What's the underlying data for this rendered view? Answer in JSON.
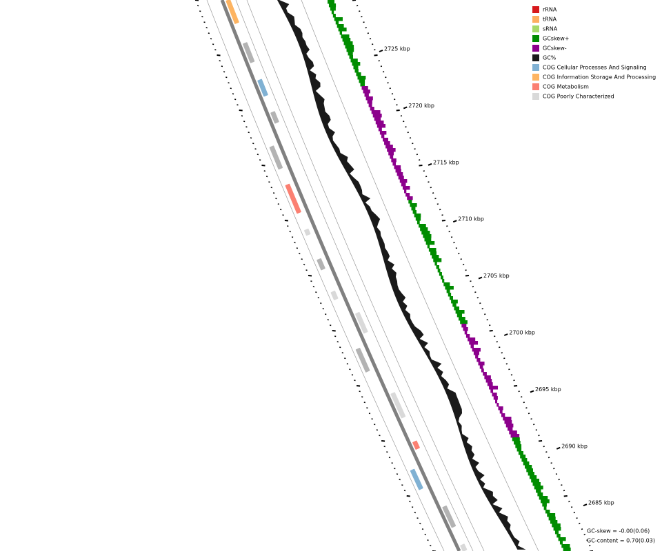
{
  "legend": [
    {
      "label": "rRNA",
      "color": "#d7191c"
    },
    {
      "label": "tRNA",
      "color": "#fdae61"
    },
    {
      "label": "sRNA",
      "color": "#a6d96a"
    },
    {
      "label": "GCskew+",
      "color": "#008c00"
    },
    {
      "label": "GCskew-",
      "color": "#8c008c"
    },
    {
      "label": "GC%",
      "color": "#1a1a1a"
    },
    {
      "label": "COG Cellular Processes And Signaling",
      "color": "#80b1d3"
    },
    {
      "label": "COG Information Storage And Processing",
      "color": "#fdb462"
    },
    {
      "label": "COG Metabolism",
      "color": "#fb8072"
    },
    {
      "label": "COG Poorly Characterized",
      "color": "#d9d9d9"
    }
  ],
  "scale_labels": [
    "2725 kbp",
    "2720 kbp",
    "2715 kbp",
    "2710 kbp",
    "2705 kbp",
    "2700 kbp",
    "2695 kbp",
    "2690 kbp",
    "2685 kbp"
  ],
  "stats": [
    "GC-skew = -0.00(0.06)",
    "GC-content = 0.70(0.03)"
  ]
}
